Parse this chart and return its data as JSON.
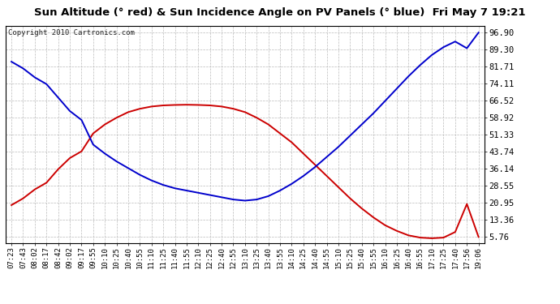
{
  "title": "Sun Altitude (° red) & Sun Incidence Angle on PV Panels (° blue)  Fri May 7 19:21",
  "copyright": "Copyright 2010 Cartronics.com",
  "background_color": "#ffffff",
  "plot_bg_color": "#ffffff",
  "grid_color": "#bbbbbb",
  "x_labels": [
    "07:23",
    "07:43",
    "08:02",
    "08:17",
    "08:42",
    "09:02",
    "09:17",
    "09:55",
    "10:10",
    "10:25",
    "10:40",
    "10:55",
    "11:10",
    "11:25",
    "11:40",
    "11:55",
    "12:10",
    "12:25",
    "12:40",
    "12:55",
    "13:10",
    "13:25",
    "13:40",
    "13:55",
    "14:10",
    "14:25",
    "14:40",
    "14:55",
    "15:10",
    "15:25",
    "15:40",
    "15:55",
    "16:10",
    "16:25",
    "16:40",
    "16:55",
    "17:10",
    "17:25",
    "17:40",
    "17:56",
    "19:06"
  ],
  "y_ticks": [
    5.76,
    13.36,
    20.95,
    28.55,
    36.14,
    43.74,
    51.33,
    58.92,
    66.52,
    74.11,
    81.71,
    89.3,
    96.9
  ],
  "ylim_min": 3.0,
  "ylim_max": 100.0,
  "red_line_color": "#cc0000",
  "blue_line_color": "#0000cc",
  "red_data": [
    20.0,
    23.0,
    27.0,
    30.0,
    36.0,
    41.0,
    44.0,
    52.0,
    56.0,
    59.0,
    61.5,
    63.0,
    64.0,
    64.5,
    64.7,
    64.8,
    64.7,
    64.5,
    64.0,
    63.0,
    61.5,
    59.0,
    56.0,
    52.0,
    48.0,
    43.0,
    38.0,
    33.0,
    28.0,
    23.0,
    18.5,
    14.5,
    11.0,
    8.5,
    6.5,
    5.5,
    5.2,
    5.5,
    8.0,
    20.5,
    5.76
  ],
  "blue_data": [
    84.0,
    81.0,
    77.0,
    74.0,
    68.0,
    62.0,
    58.0,
    47.0,
    43.0,
    39.5,
    36.5,
    33.5,
    31.0,
    29.0,
    27.5,
    26.5,
    25.5,
    24.5,
    23.5,
    22.5,
    22.0,
    22.5,
    24.0,
    26.5,
    29.5,
    33.0,
    37.0,
    41.5,
    46.0,
    51.0,
    56.0,
    61.0,
    66.5,
    72.0,
    77.5,
    82.5,
    87.0,
    90.5,
    93.0,
    90.0,
    97.0
  ],
  "title_fontsize": 9.5,
  "copyright_fontsize": 6.5,
  "tick_fontsize": 6.5,
  "ytick_fontsize": 7.5,
  "linewidth": 1.4
}
